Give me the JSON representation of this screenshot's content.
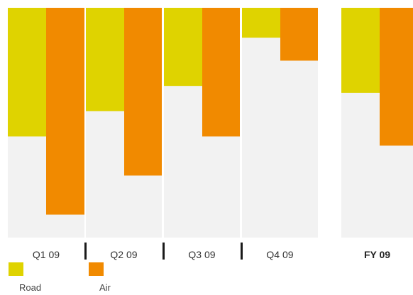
{
  "chart_data": {
    "type": "bar",
    "orientation": "vertical, hanging from top",
    "categories": [
      "Q1 09",
      "Q2 09",
      "Q3 09",
      "Q4 09",
      "FY 09"
    ],
    "highlighted_category": "FY 09",
    "series": [
      {
        "name": "Road",
        "color": "#dfd300",
        "values": [
          56,
          45,
          34,
          13,
          37
        ]
      },
      {
        "name": "Air",
        "color": "#f18a00",
        "values": [
          90,
          73,
          56,
          23,
          60
        ]
      }
    ],
    "ylim": [
      0,
      100
    ],
    "panel_background": "#f2f2f2",
    "legend_position": "bottom-left",
    "grid": false
  }
}
